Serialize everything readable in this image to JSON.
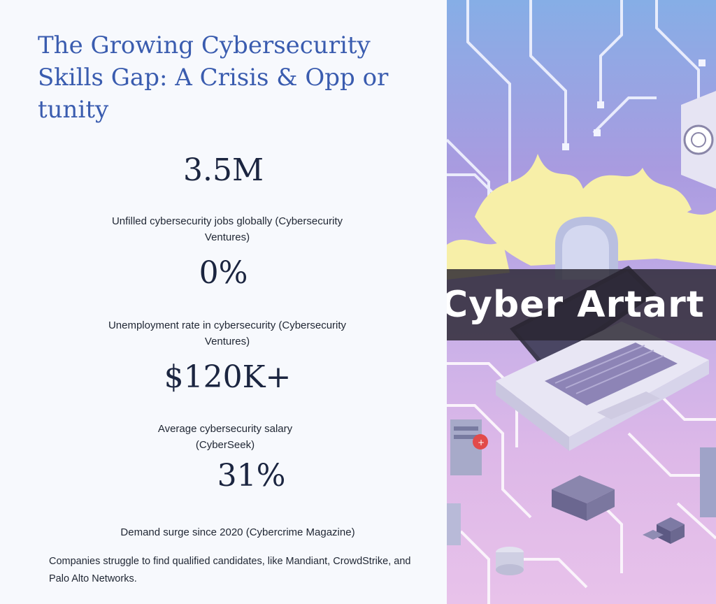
{
  "title": "The Growing Cybersecurity Skills Gap: A Crisis & Opp or tunity",
  "stats": [
    {
      "value": "3.5M",
      "label": "Unfilled cybersecurity jobs globally (Cybersecurity Ventures)"
    },
    {
      "value": "0%",
      "label": "Unemployment rate in cybersecurity (Cybersecurity Ventures)"
    },
    {
      "value": "$120K+",
      "label": "Average cybersecurity salary (CyberSeek)"
    },
    {
      "value": "31%",
      "label": "Demand surge since 2020 (Cybercrime Magazine)"
    }
  ],
  "note": "Companies struggle to find qualified candidates, like Mandiant, CrowdStrike, and Palo Alto Networks.",
  "image": {
    "banner_text": "Cyber Artart",
    "subject": "isometric laptop on circuit board illustration"
  },
  "colors": {
    "title": "#3a5caf",
    "stat_value": "#1b2540",
    "body_text": "#1f2633",
    "banner": "#28242f"
  }
}
